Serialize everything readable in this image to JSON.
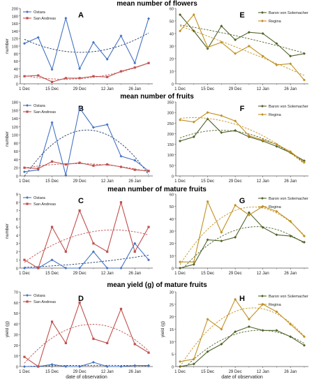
{
  "section_titles": [
    "mean number of flowers",
    "mean number of fruits",
    "mean number of mature fruits",
    "mean yield (g) of mature fruits"
  ],
  "colors": {
    "ostara": "#4472c4",
    "san_andreas": "#c0504d",
    "baron": "#4f6228",
    "regina": "#c09020",
    "trend_ostara": "#1f3864",
    "trend_sanandreas": "#c0504d",
    "trend_baron": "#4f6228",
    "trend_regina": "#c09020"
  },
  "chart_data": [
    {
      "panel": "A",
      "type": "line",
      "x": [
        "1 Dec",
        "8 Dec",
        "15 Dec",
        "22 Dec",
        "29 Dec",
        "5 Jan",
        "12 Jan",
        "19 Jan",
        "26 Jan",
        "2 Feb"
      ],
      "xticklabels": [
        "1 Dec",
        "15 Dec",
        "29 Dec",
        "12 Jan",
        "26 Jan"
      ],
      "ylabel": "number",
      "xlabel": "",
      "ylim": [
        0,
        200
      ],
      "yticks": [
        0,
        20,
        40,
        60,
        80,
        100,
        120,
        140,
        160,
        180,
        200
      ],
      "legend_position": "top-left",
      "series": [
        {
          "name": "Ostara",
          "marker": "diamond",
          "values": [
            107,
            123,
            38,
            174,
            40,
            110,
            65,
            127,
            55,
            173
          ]
        },
        {
          "name": "San Andreas",
          "marker": "square",
          "values": [
            20,
            22,
            5,
            15,
            15,
            20,
            18,
            33,
            43,
            55
          ]
        }
      ]
    },
    {
      "panel": "E",
      "type": "line",
      "x": [
        "1 Dec",
        "8 Dec",
        "15 Dec",
        "22 Dec",
        "29 Dec",
        "5 Jan",
        "12 Jan",
        "19 Jan",
        "26 Jan",
        "2 Feb"
      ],
      "xticklabels": [
        "1 Dec",
        "15 Dec",
        "29 Dec",
        "12 Jan",
        "26 Jan"
      ],
      "ylabel": "",
      "xlabel": "",
      "ylim": [
        0,
        60
      ],
      "yticks": [
        0,
        10,
        20,
        30,
        40,
        50,
        60
      ],
      "legend_position": "top-right",
      "series": [
        {
          "name": "Baron von Solemacher",
          "marker": "diamond",
          "values": [
            55,
            42,
            28,
            46,
            35,
            41,
            40,
            32,
            22,
            24
          ]
        },
        {
          "name": "Regina",
          "marker": "diamond",
          "values": [
            42,
            55,
            29,
            33,
            24,
            30,
            22,
            15,
            16,
            3
          ]
        }
      ]
    },
    {
      "panel": "B",
      "type": "line",
      "x": [
        "1 Dec",
        "8 Dec",
        "15 Dec",
        "22 Dec",
        "29 Dec",
        "5 Jan",
        "12 Jan",
        "19 Jan",
        "26 Jan",
        "2 Feb"
      ],
      "xticklabels": [
        "1 Dec",
        "15 Dec",
        "29 Dec",
        "12 Jan",
        "26 Jan"
      ],
      "ylabel": "number",
      "xlabel": "",
      "ylim": [
        0,
        180
      ],
      "yticks": [
        0,
        20,
        40,
        60,
        80,
        100,
        120,
        140,
        160,
        180
      ],
      "legend_position": "top-left",
      "series": [
        {
          "name": "Ostara",
          "marker": "diamond",
          "values": [
            10,
            15,
            130,
            2,
            165,
            118,
            125,
            48,
            38,
            12
          ]
        },
        {
          "name": "San Andreas",
          "marker": "square",
          "values": [
            20,
            18,
            35,
            28,
            32,
            25,
            28,
            22,
            15,
            12
          ]
        }
      ]
    },
    {
      "panel": "F",
      "type": "line",
      "x": [
        "1 Dec",
        "8 Dec",
        "15 Dec",
        "22 Dec",
        "29 Dec",
        "5 Jan",
        "12 Jan",
        "19 Jan",
        "26 Jan",
        "2 Feb"
      ],
      "xticklabels": [
        "1 Dec",
        "15 Dec",
        "29 Dec",
        "12 Jan",
        "26 Jan"
      ],
      "ylabel": "",
      "xlabel": "",
      "ylim": [
        0,
        350
      ],
      "yticks": [
        0,
        50,
        100,
        150,
        200,
        250,
        300,
        350
      ],
      "legend_position": "top-right",
      "series": [
        {
          "name": "Baron von Solemacher",
          "marker": "diamond",
          "values": [
            165,
            185,
            270,
            205,
            215,
            185,
            165,
            140,
            110,
            72
          ]
        },
        {
          "name": "Regina",
          "marker": "diamond",
          "values": [
            265,
            255,
            300,
            285,
            260,
            190,
            170,
            150,
            115,
            65
          ]
        }
      ]
    },
    {
      "panel": "C",
      "type": "line",
      "x": [
        "1 Dec",
        "8 Dec",
        "15 Dec",
        "22 Dec",
        "29 Dec",
        "5 Jan",
        "12 Jan",
        "19 Jan",
        "26 Jan",
        "2 Feb"
      ],
      "xticklabels": [
        "1 Dec",
        "15 Dec",
        "29 Dec",
        "12 Jan",
        "26 Jan"
      ],
      "ylabel": "number",
      "xlabel": "",
      "ylim": [
        0,
        9
      ],
      "yticks": [
        0,
        1,
        2,
        3,
        4,
        5,
        6,
        7,
        8,
        9
      ],
      "legend_position": "top-left",
      "series": [
        {
          "name": "Ostara",
          "marker": "diamond",
          "values": [
            0,
            0,
            1,
            0,
            0,
            2,
            0,
            0,
            3,
            1
          ]
        },
        {
          "name": "San Andreas",
          "marker": "square",
          "values": [
            1,
            0,
            5,
            2,
            7,
            3,
            2,
            8,
            2,
            5
          ]
        }
      ]
    },
    {
      "panel": "G",
      "type": "line",
      "x": [
        "1 Dec",
        "8 Dec",
        "15 Dec",
        "22 Dec",
        "29 Dec",
        "5 Jan",
        "12 Jan",
        "19 Jan",
        "26 Jan",
        "2 Feb"
      ],
      "xticklabels": [
        "1 Dec",
        "15 Dec",
        "29 Dec",
        "12 Jan",
        "26 Jan"
      ],
      "ylabel": "",
      "xlabel": "",
      "ylim": [
        0,
        60
      ],
      "yticks": [
        0,
        10,
        20,
        30,
        40,
        50,
        60
      ],
      "legend_position": "top-right",
      "series": [
        {
          "name": "Baron von Solemacher",
          "marker": "diamond",
          "values": [
            0,
            3,
            23,
            22,
            25,
            45,
            33,
            27,
            26,
            21
          ]
        },
        {
          "name": "Regina",
          "marker": "diamond",
          "values": [
            5,
            5,
            54,
            29,
            51,
            43,
            50,
            46,
            38,
            26
          ]
        }
      ]
    },
    {
      "panel": "D",
      "type": "line",
      "x": [
        "1 Dec",
        "8 Dec",
        "15 Dec",
        "22 Dec",
        "29 Dec",
        "5 Jan",
        "12 Jan",
        "19 Jan",
        "26 Jan",
        "2 Feb"
      ],
      "xticklabels": [
        "1 Dec",
        "15 Dec",
        "29 Dec",
        "12 Jan",
        "26 Jan"
      ],
      "ylabel": "yield (g)",
      "xlabel": "date of observation",
      "ylim": [
        0,
        70
      ],
      "yticks": [
        0,
        10,
        20,
        30,
        40,
        50,
        60,
        70
      ],
      "legend_position": "top-left",
      "series": [
        {
          "name": "Ostara",
          "marker": "diamond",
          "values": [
            0,
            0,
            2,
            0,
            0,
            4,
            0,
            0,
            1,
            1
          ]
        },
        {
          "name": "San Andreas",
          "marker": "square",
          "values": [
            9,
            0,
            42,
            22,
            60,
            26,
            22,
            54,
            21,
            13
          ]
        }
      ]
    },
    {
      "panel": "H",
      "type": "line",
      "x": [
        "1 Dec",
        "8 Dec",
        "15 Dec",
        "22 Dec",
        "29 Dec",
        "5 Jan",
        "12 Jan",
        "19 Jan",
        "26 Jan",
        "2 Feb"
      ],
      "xticklabels": [
        "1 Dec",
        "15 Dec",
        "29 Dec",
        "12 Jan",
        "26 Jan"
      ],
      "ylabel": "yield (g)",
      "xlabel": "date of observation",
      "ylim": [
        0,
        30
      ],
      "yticks": [
        0,
        5,
        10,
        15,
        20,
        25,
        30
      ],
      "legend_position": "top-right",
      "series": [
        {
          "name": "Baron von Solemacher",
          "marker": "diamond",
          "values": [
            0,
            1,
            6,
            9,
            14,
            16,
            14.5,
            14.5,
            12,
            8.5
          ]
        },
        {
          "name": "Regina",
          "marker": "diamond",
          "values": [
            2,
            3,
            19,
            15,
            27,
            19,
            25,
            22,
            17,
            12
          ]
        }
      ]
    }
  ]
}
